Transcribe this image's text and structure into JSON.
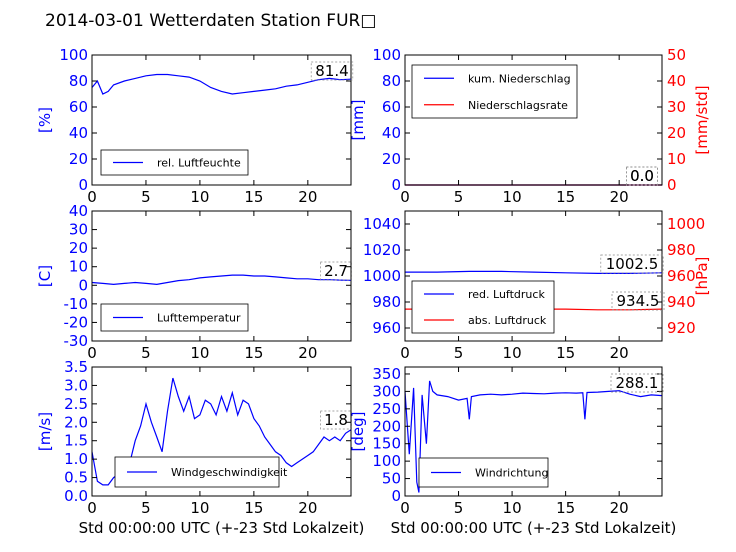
{
  "title": "2014-03-01 Wetterdaten Station FUR□",
  "colors": {
    "left_axis": "#0000ff",
    "right_axis": "#ff0000",
    "frame": "#000000"
  },
  "chart_data": [
    {
      "type": "line",
      "xlim": [
        0,
        24
      ],
      "xticks": [
        0,
        5,
        10,
        15,
        20
      ],
      "ylabel": "[%]",
      "ylim": [
        0,
        100
      ],
      "yticks": [
        0,
        20,
        40,
        60,
        80,
        100
      ],
      "legend": [
        "rel. Luftfeuchte"
      ],
      "legend_position": "lower-left",
      "annotations": [
        "81.4"
      ],
      "series": [
        {
          "name": "rel. Luftfeuchte",
          "color": "#0000ff",
          "x": [
            0,
            0.5,
            1,
            1.5,
            2,
            3,
            4,
            5,
            6,
            7,
            8,
            9,
            10,
            11,
            12,
            13,
            14,
            15,
            16,
            17,
            18,
            19,
            20,
            21,
            22,
            23,
            24
          ],
          "y": [
            75,
            80,
            70,
            72,
            77,
            80,
            82,
            84,
            85,
            85,
            84,
            83,
            80,
            75,
            72,
            70,
            71,
            72,
            73,
            74,
            76,
            77,
            79,
            81,
            82,
            81,
            81.4
          ]
        }
      ]
    },
    {
      "type": "line",
      "xlim": [
        0,
        24
      ],
      "xticks": [
        0,
        5,
        10,
        15,
        20
      ],
      "ylabel": "[mm]",
      "ylim": [
        0,
        100
      ],
      "yticks": [
        0,
        20,
        40,
        60,
        80,
        100
      ],
      "y2label": "[mm/std]",
      "y2lim": [
        0,
        50
      ],
      "y2ticks": [
        0,
        10,
        20,
        30,
        40,
        50
      ],
      "legend": [
        "kum. Niederschlag",
        "Niederschlagsrate"
      ],
      "legend_position": "upper-left",
      "annotations": [
        "0.0",
        "0.0"
      ],
      "series": [
        {
          "name": "kum. Niederschlag",
          "color": "#0000ff",
          "axis": "left",
          "x": [
            0,
            24
          ],
          "y": [
            0,
            0
          ]
        },
        {
          "name": "Niederschlagsrate",
          "color": "#ff0000",
          "axis": "right",
          "x": [
            0,
            24
          ],
          "y": [
            0,
            0
          ]
        }
      ]
    },
    {
      "type": "line",
      "xlim": [
        0,
        24
      ],
      "xticks": [
        0,
        5,
        10,
        15,
        20
      ],
      "ylabel": "[C]",
      "ylim": [
        -30,
        40
      ],
      "yticks": [
        -30,
        -20,
        -10,
        0,
        10,
        20,
        30,
        40
      ],
      "legend": [
        "Lufttemperatur"
      ],
      "legend_position": "lower-left",
      "annotations": [
        "2.7"
      ],
      "series": [
        {
          "name": "Lufttemperatur",
          "color": "#0000ff",
          "x": [
            0,
            1,
            2,
            3,
            4,
            5,
            6,
            7,
            8,
            9,
            10,
            11,
            12,
            13,
            14,
            15,
            16,
            17,
            18,
            19,
            20,
            21,
            22,
            23,
            24
          ],
          "y": [
            1.5,
            1,
            0.5,
            1,
            1.5,
            1,
            0.5,
            1.5,
            2.5,
            3,
            4,
            4.5,
            5,
            5.5,
            5.5,
            5,
            5,
            4.5,
            4,
            3.5,
            3.5,
            3,
            3,
            2.8,
            2.7
          ]
        }
      ]
    },
    {
      "type": "line",
      "xlim": [
        0,
        24
      ],
      "xticks": [
        0,
        5,
        10,
        15,
        20
      ],
      "ylabel": "",
      "ylim": [
        950,
        1050
      ],
      "yticks": [
        960,
        980,
        1000,
        1020,
        1040
      ],
      "y2label": "[hPa]",
      "y2lim": [
        910,
        1010
      ],
      "y2ticks": [
        920,
        940,
        960,
        980,
        1000
      ],
      "legend": [
        "red. Luftdruck",
        "abs. Luftdruck"
      ],
      "legend_position": "lower-left",
      "annotations": [
        "1002.5",
        "934.5"
      ],
      "series": [
        {
          "name": "red. Luftdruck",
          "color": "#0000ff",
          "axis": "left",
          "x": [
            0,
            3,
            6,
            9,
            12,
            15,
            18,
            21,
            24
          ],
          "y": [
            1003,
            1003,
            1003.5,
            1003.5,
            1003,
            1002.5,
            1002,
            1002,
            1002.5
          ]
        },
        {
          "name": "abs. Luftdruck",
          "color": "#ff0000",
          "axis": "right",
          "x": [
            0,
            3,
            6,
            9,
            12,
            15,
            18,
            21,
            24
          ],
          "y": [
            934.5,
            934.5,
            935,
            935,
            934.5,
            934.5,
            934,
            934,
            934.5
          ]
        }
      ]
    },
    {
      "type": "line",
      "xlabel": "Std 00:00:00 UTC (+-23 Std Lokalzeit)",
      "xlim": [
        0,
        24
      ],
      "xticks": [
        0,
        5,
        10,
        15,
        20
      ],
      "ylabel": "[m/s]",
      "ylim": [
        0,
        3.5
      ],
      "yticks": [
        0.0,
        0.5,
        1.0,
        1.5,
        2.0,
        2.5,
        3.0,
        3.5
      ],
      "legend": [
        "Windgeschwindigkeit"
      ],
      "legend_position": "lower-center",
      "annotations": [
        "1.8"
      ],
      "series": [
        {
          "name": "Windgeschwindigkeit",
          "color": "#0000ff",
          "x": [
            0,
            0.5,
            1,
            1.5,
            2,
            2.5,
            3,
            3.5,
            4,
            4.5,
            5,
            5.5,
            6,
            6.5,
            7,
            7.5,
            8,
            8.5,
            9,
            9.5,
            10,
            10.5,
            11,
            11.5,
            12,
            12.5,
            13,
            13.5,
            14,
            14.5,
            15,
            15.5,
            16,
            16.5,
            17,
            17.5,
            18,
            18.5,
            19,
            19.5,
            20,
            20.5,
            21,
            21.5,
            22,
            22.5,
            23,
            23.5,
            24
          ],
          "y": [
            1.2,
            0.4,
            0.3,
            0.3,
            0.5,
            0.6,
            0.8,
            0.9,
            1.5,
            1.9,
            2.5,
            2.0,
            1.6,
            1.2,
            2.3,
            3.2,
            2.7,
            2.3,
            2.7,
            2.1,
            2.2,
            2.6,
            2.5,
            2.2,
            2.7,
            2.3,
            2.8,
            2.2,
            2.6,
            2.5,
            2.1,
            1.9,
            1.6,
            1.4,
            1.2,
            1.1,
            0.9,
            0.8,
            0.9,
            1.0,
            1.1,
            1.2,
            1.4,
            1.6,
            1.5,
            1.6,
            1.5,
            1.7,
            1.8
          ]
        }
      ]
    },
    {
      "type": "line",
      "xlabel": "Std 00:00:00 UTC (+-23 Std Lokalzeit)",
      "xlim": [
        0,
        24
      ],
      "xticks": [
        0,
        5,
        10,
        15,
        20
      ],
      "ylabel": "[deg]",
      "ylim": [
        0,
        370
      ],
      "yticks": [
        0,
        50,
        100,
        150,
        200,
        250,
        300,
        350
      ],
      "legend": [
        "Windrichtung"
      ],
      "legend_position": "lower-left",
      "annotations": [
        "288.1"
      ],
      "series": [
        {
          "name": "Windrichtung",
          "color": "#0000ff",
          "x": [
            0,
            0.4,
            0.8,
            1.1,
            1.3,
            1.6,
            2.0,
            2.3,
            2.6,
            3,
            4,
            5,
            5.8,
            6,
            6.2,
            7,
            8,
            9,
            10,
            11,
            12,
            13,
            14,
            15,
            16,
            16.6,
            16.8,
            17,
            18,
            19,
            20,
            21,
            22,
            23,
            24
          ],
          "y": [
            300,
            120,
            310,
            40,
            10,
            290,
            150,
            330,
            300,
            290,
            285,
            275,
            280,
            220,
            285,
            290,
            292,
            290,
            292,
            295,
            294,
            293,
            295,
            296,
            295,
            296,
            220,
            297,
            298,
            300,
            302,
            292,
            285,
            290,
            288.1
          ]
        }
      ]
    }
  ]
}
